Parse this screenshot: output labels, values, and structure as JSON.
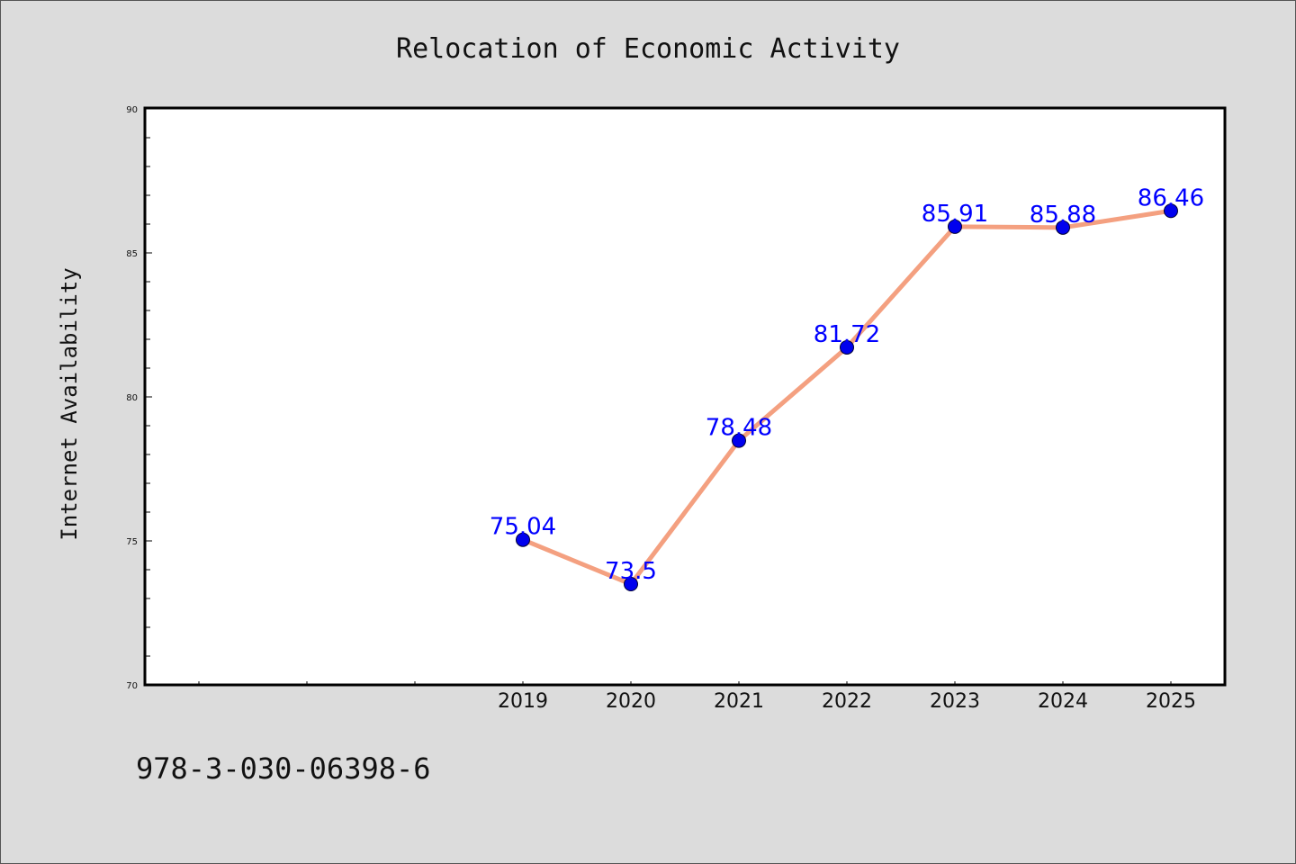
{
  "chart_data": {
    "type": "line",
    "title": "Relocation of Economic Activity",
    "xlabel": "",
    "ylabel": "Internet Availability",
    "x": [
      "2019",
      "2020",
      "2021",
      "2022",
      "2023",
      "2024",
      "2025"
    ],
    "x_hidden_slots": 3,
    "series": [
      {
        "values": [
          75.04,
          73.5,
          78.48,
          81.72,
          85.91,
          85.88,
          86.46
        ]
      }
    ],
    "data_labels": [
      "75.04",
      "73.5",
      "78.48",
      "81.72",
      "85.91",
      "85.88",
      "86.46"
    ],
    "ylim": [
      70,
      90
    ],
    "yticks_major": [
      70,
      75,
      80,
      85,
      90
    ],
    "ytick_minor_step": 1,
    "grid": false,
    "line_color": "#f4a080",
    "marker_color": "#0000ee",
    "label_color": "#0000ff"
  },
  "footer": {
    "isbn": "978-3-030-06398-6"
  }
}
